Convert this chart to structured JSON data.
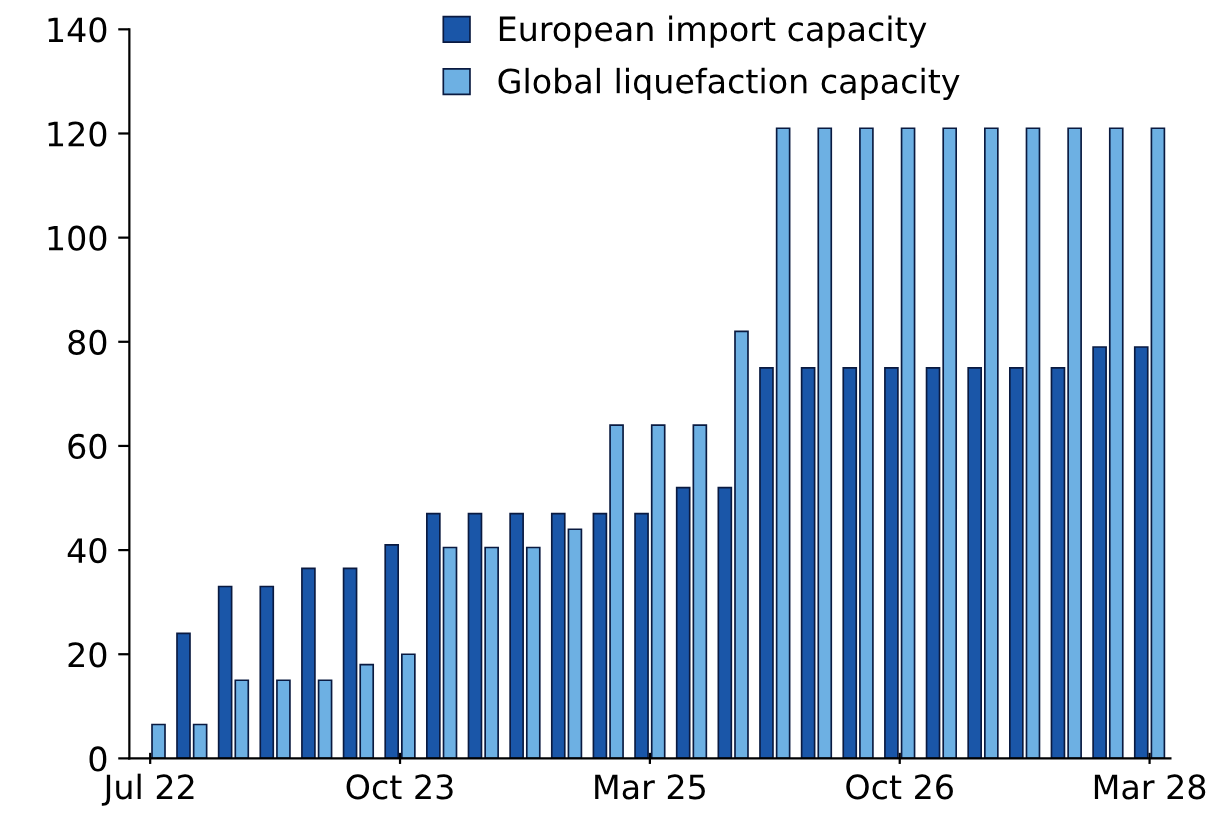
{
  "chart_data": {
    "type": "bar",
    "categories": [
      "Jul 22",
      null,
      null,
      null,
      null,
      null,
      "Oct 23",
      null,
      null,
      null,
      null,
      null,
      "Mar 25",
      null,
      null,
      null,
      null,
      null,
      "Oct 26",
      null,
      null,
      null,
      null,
      null,
      "Mar 28"
    ],
    "series": [
      {
        "name": "European import capacity",
        "color": "#1a56a8",
        "values": [
          null,
          24,
          33,
          33,
          36.5,
          36.5,
          41,
          47,
          47,
          47,
          47,
          47,
          47,
          52,
          52,
          75,
          75,
          75,
          75,
          75,
          75,
          75,
          75,
          79,
          79
        ]
      },
      {
        "name": "Global liquefaction capacity",
        "color": "#6db0e3",
        "values": [
          6.5,
          6.5,
          15,
          15,
          15,
          18,
          20,
          40.5,
          40.5,
          40.5,
          44,
          64,
          64,
          64,
          82,
          121,
          121,
          121,
          121,
          121,
          121,
          121,
          121,
          121,
          121
        ]
      }
    ],
    "ylim": [
      0,
      140
    ],
    "yticks": [
      0,
      20,
      40,
      60,
      80,
      100,
      120,
      140
    ],
    "legend": "top",
    "grid": false
  }
}
